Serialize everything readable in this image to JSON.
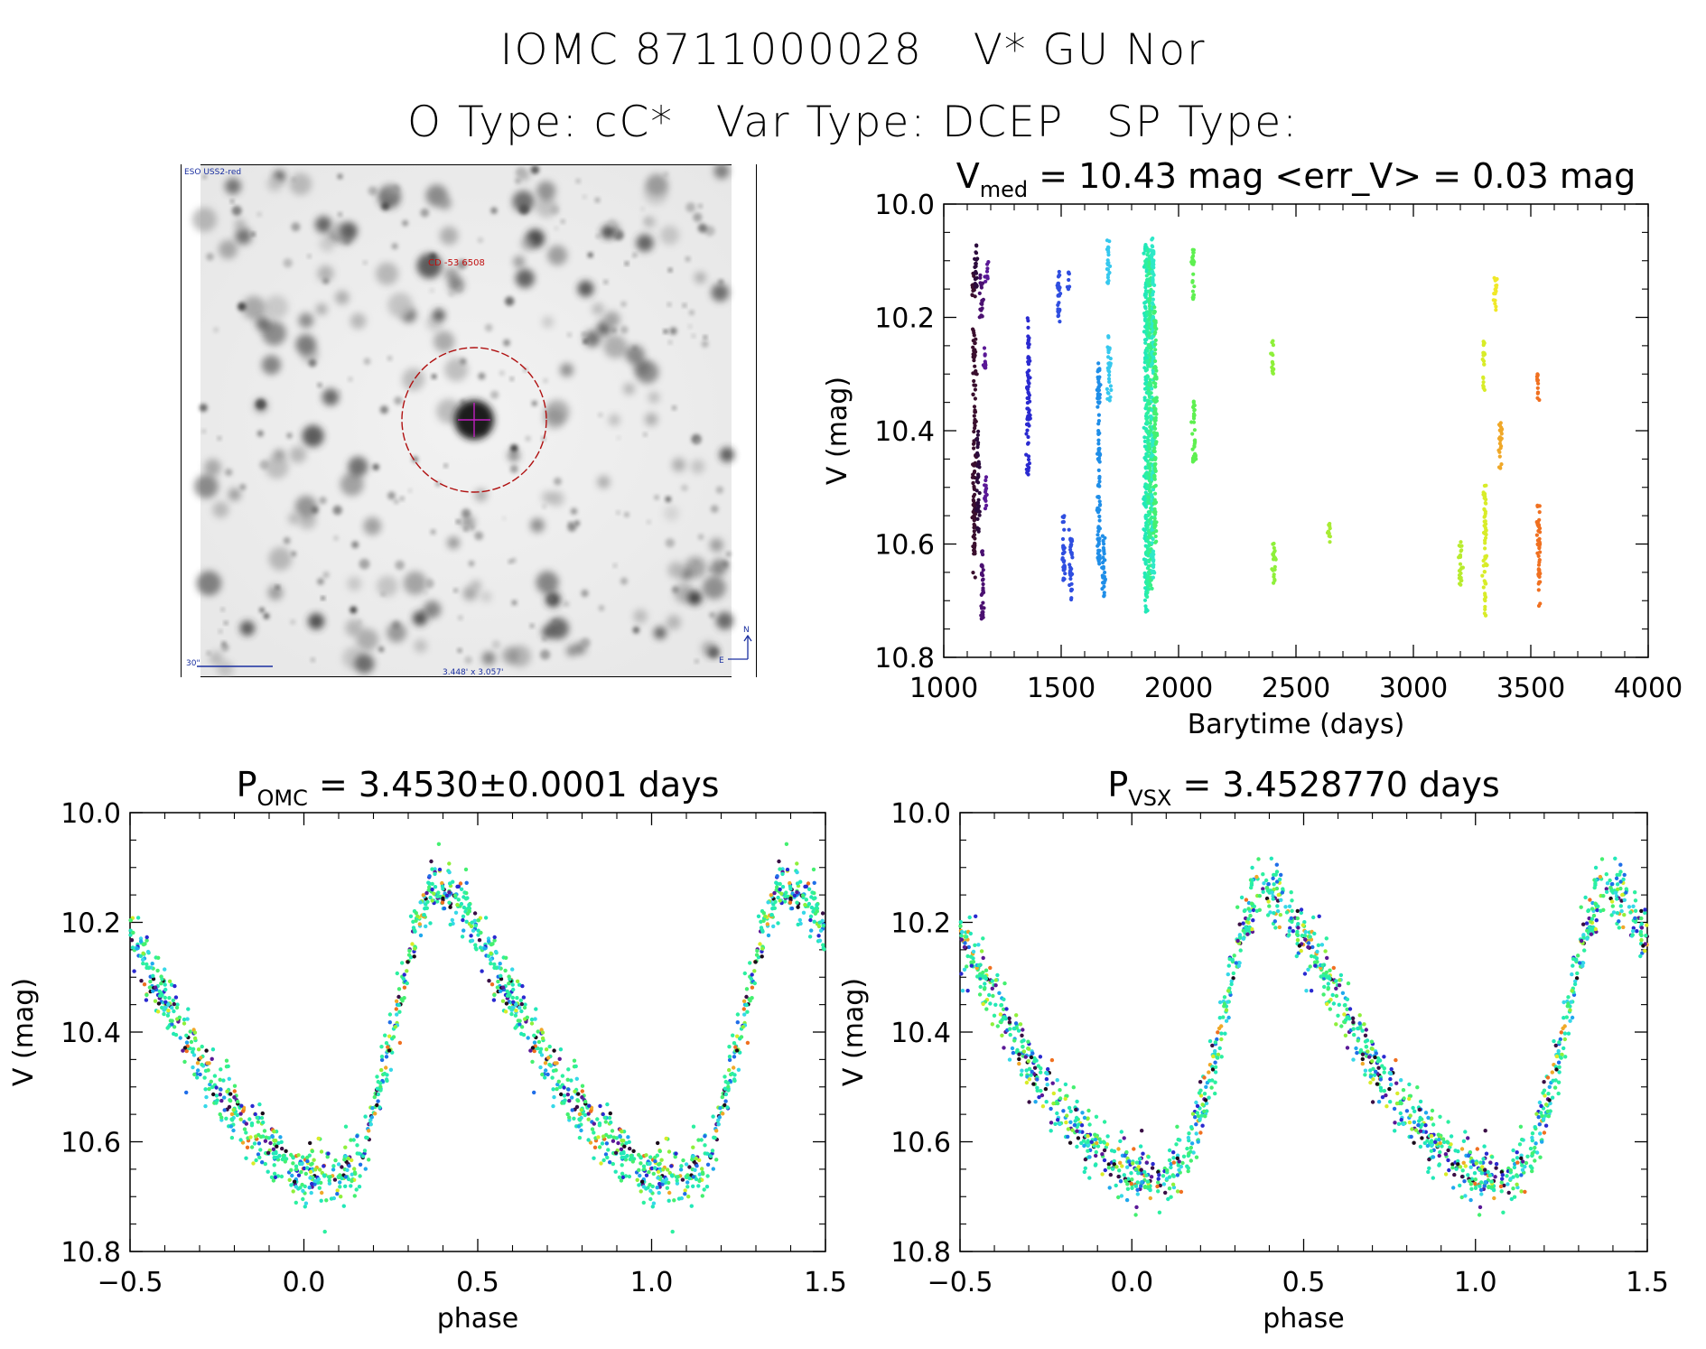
{
  "header": {
    "object_id": "IOMC 8711000028",
    "object_name": "V* GU Nor",
    "otype_label": "O Type:",
    "otype_value": "cC*",
    "vartype_label": "Var Type:",
    "vartype_value": "DCEP",
    "sptype_label": "SP Type:",
    "sptype_value": ""
  },
  "finder": {
    "survey_label": "ESO USS2-red",
    "target_label": "CD -53 6508",
    "scale_label": "30\"",
    "size_label": "3.448' x 3.057'",
    "north_label": "N",
    "east_label": "E"
  },
  "chart_data": [
    {
      "id": "lightcurve",
      "type": "scatter",
      "title_prefix": "V",
      "title_sub": "med",
      "title_rest": " = 10.43 mag <err_V> = 0.03 mag",
      "xlabel": "Barytime (days)",
      "ylabel": "V (mag)",
      "xlim": [
        1000,
        4000
      ],
      "ylim": [
        10.8,
        10.0
      ],
      "xticks": [
        1000,
        1500,
        2000,
        2500,
        3000,
        3500,
        4000
      ],
      "yticks": [
        10.0,
        10.2,
        10.4,
        10.6,
        10.8
      ],
      "series": [
        {
          "x": 1125,
          "ymin": 10.12,
          "ymax": 10.17,
          "color": "#3a0f2e"
        },
        {
          "x": 1130,
          "ymin": 10.22,
          "ymax": 10.66,
          "color": "#3a0f2e"
        },
        {
          "x": 1138,
          "ymin": 10.07,
          "ymax": 10.15,
          "color": "#2b0b3d"
        },
        {
          "x": 1145,
          "ymin": 10.4,
          "ymax": 10.58,
          "color": "#2b0b3d"
        },
        {
          "x": 1160,
          "ymin": 10.12,
          "ymax": 10.2,
          "color": "#4a1070"
        },
        {
          "x": 1165,
          "ymin": 10.6,
          "ymax": 10.74,
          "color": "#4a1070"
        },
        {
          "x": 1175,
          "ymin": 10.25,
          "ymax": 10.29,
          "color": "#5a1896"
        },
        {
          "x": 1178,
          "ymin": 10.48,
          "ymax": 10.54,
          "color": "#5a1896"
        },
        {
          "x": 1185,
          "ymin": 10.1,
          "ymax": 10.14,
          "color": "#5a1896"
        },
        {
          "x": 1360,
          "ymin": 10.2,
          "ymax": 10.48,
          "color": "#2a2ad0"
        },
        {
          "x": 1490,
          "ymin": 10.11,
          "ymax": 10.21,
          "color": "#2f4ee0"
        },
        {
          "x": 1510,
          "ymin": 10.55,
          "ymax": 10.67,
          "color": "#2f4ee0"
        },
        {
          "x": 1530,
          "ymin": 10.12,
          "ymax": 10.15,
          "color": "#2f4ee0"
        },
        {
          "x": 1540,
          "ymin": 10.57,
          "ymax": 10.71,
          "color": "#2f4ee0"
        },
        {
          "x": 1660,
          "ymin": 10.28,
          "ymax": 10.64,
          "color": "#1f8ee8"
        },
        {
          "x": 1680,
          "ymin": 10.58,
          "ymax": 10.7,
          "color": "#1f8ee8"
        },
        {
          "x": 1700,
          "ymin": 10.06,
          "ymax": 10.14,
          "color": "#36c8ee"
        },
        {
          "x": 1705,
          "ymin": 10.23,
          "ymax": 10.35,
          "color": "#36c8ee"
        },
        {
          "x": 1860,
          "ymin": 10.07,
          "ymax": 10.72,
          "color": "#22e8b8"
        },
        {
          "x": 1870,
          "ymin": 10.08,
          "ymax": 10.7,
          "color": "#2cf0a0"
        },
        {
          "x": 1880,
          "ymin": 10.1,
          "ymax": 10.68,
          "color": "#38f088"
        },
        {
          "x": 1890,
          "ymin": 10.06,
          "ymax": 10.66,
          "color": "#2ee8c8"
        },
        {
          "x": 1900,
          "ymin": 10.18,
          "ymax": 10.6,
          "color": "#44f070"
        },
        {
          "x": 2060,
          "ymin": 10.08,
          "ymax": 10.17,
          "color": "#5ef050"
        },
        {
          "x": 2065,
          "ymin": 10.33,
          "ymax": 10.46,
          "color": "#5ef050"
        },
        {
          "x": 2400,
          "ymin": 10.24,
          "ymax": 10.3,
          "color": "#8ef03a"
        },
        {
          "x": 2405,
          "ymin": 10.59,
          "ymax": 10.67,
          "color": "#8ef03a"
        },
        {
          "x": 2640,
          "ymin": 10.56,
          "ymax": 10.6,
          "color": "#a8ec34"
        },
        {
          "x": 3200,
          "ymin": 10.59,
          "ymax": 10.68,
          "color": "#b8ec2e"
        },
        {
          "x": 3300,
          "ymin": 10.24,
          "ymax": 10.33,
          "color": "#d8ec28"
        },
        {
          "x": 3305,
          "ymin": 10.49,
          "ymax": 10.73,
          "color": "#d8ec28"
        },
        {
          "x": 3350,
          "ymin": 10.13,
          "ymax": 10.19,
          "color": "#f0e828"
        },
        {
          "x": 3370,
          "ymin": 10.38,
          "ymax": 10.47,
          "color": "#f0a828"
        },
        {
          "x": 3530,
          "ymin": 10.3,
          "ymax": 10.35,
          "color": "#f07020"
        },
        {
          "x": 3535,
          "ymin": 10.53,
          "ymax": 10.71,
          "color": "#f07020"
        }
      ]
    },
    {
      "id": "phase_omc",
      "type": "scatter",
      "title_prefix": "P",
      "title_sub": "OMC",
      "title_rest": " = 3.4530±0.0001 days",
      "xlabel": "phase",
      "ylabel": "V (mag)",
      "xlim": [
        -0.5,
        1.5
      ],
      "ylim": [
        10.8,
        10.0
      ],
      "xticks": [
        -0.5,
        0.0,
        0.5,
        1.0,
        1.5
      ],
      "yticks": [
        10.0,
        10.2,
        10.4,
        10.6,
        10.8
      ],
      "xtick_labels": [
        "−0.5",
        "0.0",
        "0.5",
        "1.0",
        "1.5"
      ],
      "curve": [
        {
          "x": 0.0,
          "y": 10.66
        },
        {
          "x": 0.1,
          "y": 10.67
        },
        {
          "x": 0.17,
          "y": 10.62
        },
        {
          "x": 0.25,
          "y": 10.42
        },
        {
          "x": 0.32,
          "y": 10.22
        },
        {
          "x": 0.37,
          "y": 10.13
        },
        {
          "x": 0.45,
          "y": 10.17
        },
        {
          "x": 0.55,
          "y": 10.28
        },
        {
          "x": 0.65,
          "y": 10.4
        },
        {
          "x": 0.75,
          "y": 10.5
        },
        {
          "x": 0.85,
          "y": 10.58
        },
        {
          "x": 0.95,
          "y": 10.64
        },
        {
          "x": 1.0,
          "y": 10.66
        }
      ],
      "scatter_width": 0.05
    },
    {
      "id": "phase_vsx",
      "type": "scatter",
      "title_prefix": "P",
      "title_sub": "VSX",
      "title_rest": " = 3.4528770 days",
      "xlabel": "phase",
      "ylabel": "V (mag)",
      "xlim": [
        -0.5,
        1.5
      ],
      "ylim": [
        10.8,
        10.0
      ],
      "xticks": [
        -0.5,
        0.0,
        0.5,
        1.0,
        1.5
      ],
      "yticks": [
        10.0,
        10.2,
        10.4,
        10.6,
        10.8
      ],
      "xtick_labels": [
        "−0.5",
        "0.0",
        "0.5",
        "1.0",
        "1.5"
      ],
      "curve": [
        {
          "x": 0.0,
          "y": 10.66
        },
        {
          "x": 0.1,
          "y": 10.67
        },
        {
          "x": 0.17,
          "y": 10.62
        },
        {
          "x": 0.25,
          "y": 10.42
        },
        {
          "x": 0.32,
          "y": 10.22
        },
        {
          "x": 0.37,
          "y": 10.13
        },
        {
          "x": 0.45,
          "y": 10.17
        },
        {
          "x": 0.55,
          "y": 10.28
        },
        {
          "x": 0.65,
          "y": 10.4
        },
        {
          "x": 0.75,
          "y": 10.5
        },
        {
          "x": 0.85,
          "y": 10.58
        },
        {
          "x": 0.95,
          "y": 10.64
        },
        {
          "x": 1.0,
          "y": 10.66
        }
      ],
      "scatter_width": 0.05
    }
  ]
}
